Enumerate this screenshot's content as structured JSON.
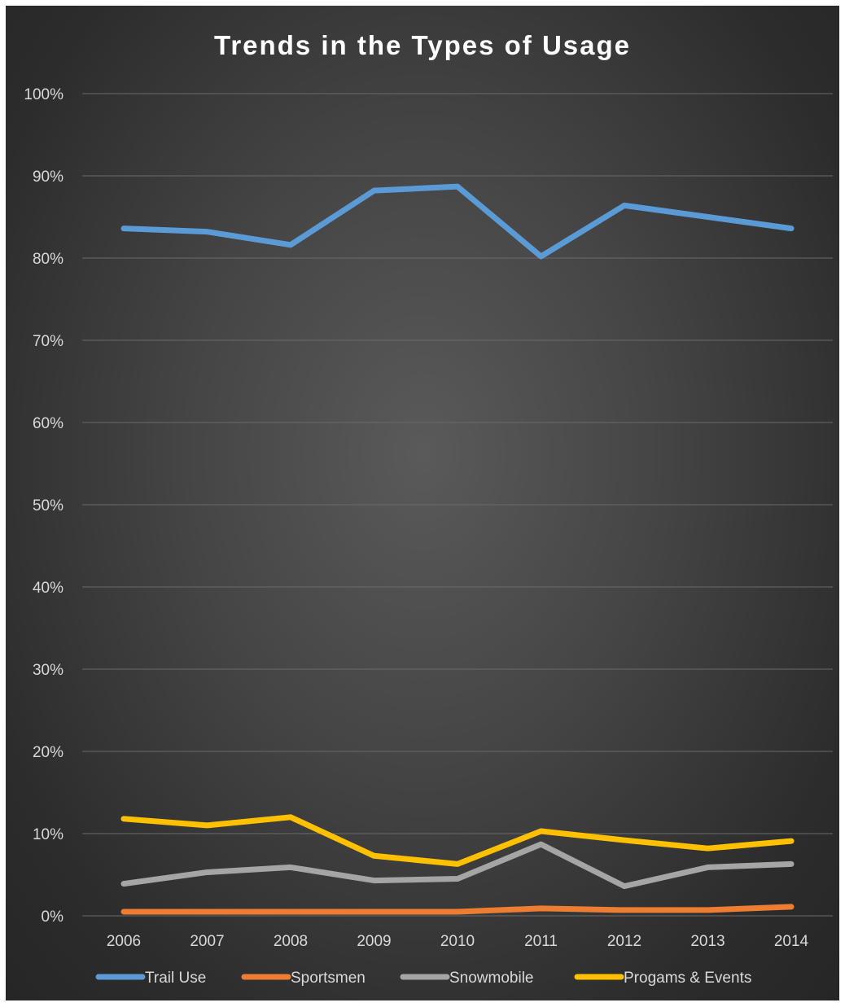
{
  "chart_data": {
    "type": "line",
    "title": "Trends in the Types of Usage",
    "xlabel": "",
    "ylabel": "",
    "categories": [
      "2006",
      "2007",
      "2008",
      "2009",
      "2010",
      "2011",
      "2012",
      "2013",
      "2014"
    ],
    "ylim": [
      0,
      100
    ],
    "yticks": [
      "0%",
      "10%",
      "20%",
      "30%",
      "40%",
      "50%",
      "60%",
      "70%",
      "80%",
      "90%",
      "100%"
    ],
    "grid": true,
    "legend_position": "bottom",
    "series": [
      {
        "name": "Trail Use",
        "color": "#5b9bd5",
        "values": [
          83.6,
          83.2,
          81.6,
          88.2,
          88.7,
          80.2,
          86.4,
          85.0,
          83.6
        ]
      },
      {
        "name": "Sportsmen",
        "color": "#ed7d31",
        "values": [
          0.5,
          0.5,
          0.5,
          0.5,
          0.5,
          0.9,
          0.7,
          0.7,
          1.1
        ]
      },
      {
        "name": "Snowmobile",
        "color": "#a5a5a5",
        "values": [
          3.9,
          5.3,
          5.9,
          4.3,
          4.5,
          8.7,
          3.6,
          5.9,
          6.3
        ]
      },
      {
        "name": "Progams & Events",
        "color": "#ffc000",
        "values": [
          11.8,
          11.0,
          12.0,
          7.3,
          6.3,
          10.3,
          9.2,
          8.2,
          9.1
        ]
      }
    ]
  }
}
